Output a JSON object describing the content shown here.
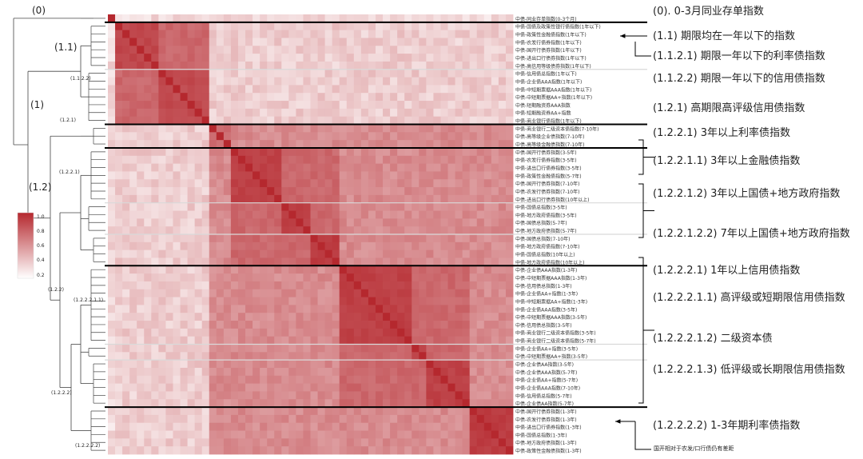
{
  "chart_data": {
    "type": "heatmap",
    "description_free": true,
    "colorbar": {
      "ticks": [
        "1.0",
        "0.8",
        "0.6",
        "0.4",
        "0.2"
      ],
      "min": 0.2,
      "max": 1.0
    },
    "colors": {
      "high": "#b5282e",
      "low": "#ffffff",
      "divider": "#000000",
      "subdivider": "#d9d9d9"
    },
    "tree_labels": {
      "root": "(0)",
      "n1": "(1)",
      "n11": "(1.1)",
      "n1122": "(1.1.2.2)",
      "n121": "(1.2.1)",
      "n12": "(1.2)",
      "n1221": "(1.2.2.1)",
      "n122": "(1.2.2)",
      "n12221": "(1.2.2.2.1.1)",
      "n1222": "(1.2.2.2)",
      "n12222": "(1.2.2.2.2)"
    },
    "annotations": [
      "(0). 0-3月同业存单指数",
      "(1.1) 期限均在一年以下的指数",
      "(1.1.2.1) 期限一年以下的利率债指数",
      "(1.1.2.2) 期限一年以下的信用债指数",
      "(1.2.1) 高期限高评级信用债指数",
      "(1.2.2.1) 3年以上利率债指数",
      "(1.2.2.1.1) 3年以上金融债指数",
      "(1.2.2.1.2) 3年以上国债+地方政府指数",
      "(1.2.2.1.2.2) 7年以上国债+地方政府指数",
      "(1.2.2.2.1) 1年以上信用债指数",
      "(1.2.2.2.1.1) 高评级或短期限信用债指数",
      "(1.2.2.2.1.2) 二级资本债",
      "(1.2.2.2.1.3) 低评级或长期限信用债指数",
      "(1.2.2.2.2) 1-3年期利率债指数"
    ],
    "footnote": "国开相对于农发/口行债仍有差距",
    "row_labels": [
      "中债-同业存单指数(0-3个月)",
      "中债-国债及政策性银行债指数(1年以下)",
      "中债-政策性金融债指数(1年以下)",
      "中债-农发行债券指数(1年以下)",
      "中债-国开行债券指数(1年以下)",
      "中债-进出口行债券指数(1年以下)",
      "中债-高信用等级债券指数(1年以下)",
      "中债-信用债总指数(1年以下)",
      "中债-企业债AAA指数(1年以下)",
      "中债-中短期票据AAA指数(1年以下)",
      "中债-中短期票据AA+指数(1年以下)",
      "中债-短期融资券AAA指数",
      "中债-短期融资券AA+指数",
      "中债-商业银行债指数(1年以下)",
      "中债-商业银行二级资本债指数(7-10年)",
      "中债-高等级企业债指数(7-10年)",
      "中债-高等级金融债指数(7-10年)",
      "中债-国开行债券指数(3-5年)",
      "中债-农发行债券指数(3-5年)",
      "中债-进出口行债券指数(3-5年)",
      "中债-政策性金融债指数(5-7年)",
      "中债-国开行债券指数(7-10年)",
      "中债-农发行债券指数(7-10年)",
      "中债-进出口行债券指数(10年以上)",
      "中债-国债总指数(3-5年)",
      "中债-地方政府债指数(3-5年)",
      "中债-国债总指数(5-7年)",
      "中债-地方政府债指数(5-7年)",
      "中债-国债总指数(7-10年)",
      "中债-地方政府债指数(7-10年)",
      "中债-国债总指数(10年以上)",
      "中债-地方政府债指数(10年以上)",
      "中债-企业债AAA指数(1-3年)",
      "中债-中短期票据AAA指数(1-3年)",
      "中债-信用债总指数(1-3年)",
      "中债-企业债AA+指数(1-3年)",
      "中债-中短期票据AA+指数(1-3年)",
      "中债-企业债AAA指数(3-5年)",
      "中债-中短期票据AAA指数(3-5年)",
      "中债-信用债总指数(3-5年)",
      "中债-商业银行二级资本债指数(3-5年)",
      "中债-商业银行二级资本债指数(5-7年)",
      "中债-企业债AA+指数(3-5年)",
      "中债-中短期票据AA+指数(3-5年)",
      "中债-企业债AA指数(3-5年)",
      "中债-企业债AAA指数(5-7年)",
      "中债-企业债AA+指数(5-7年)",
      "中债-企业债AAA指数(7-10年)",
      "中债-信用债总指数(5-7年)",
      "中债-企业债AA指数(5-7年)",
      "中债-国开行债券指数(1-3年)",
      "中债-农发行债券指数(1-3年)",
      "中债-进出口行债券指数(1-3年)",
      "中债-国债总指数(1-3年)",
      "中债-地方政府债指数(1-3年)",
      "中债-政策性金融债指数(1-3年)"
    ],
    "groups": [
      {
        "name": "(0)",
        "size": 1,
        "base": 0.78
      },
      {
        "name": "(1.1.2.1)",
        "size": 6,
        "base": 0.88
      },
      {
        "name": "(1.1.2.2)",
        "size": 7,
        "base": 0.86
      },
      {
        "name": "(1.2.1)",
        "size": 3,
        "base": 0.72
      },
      {
        "name": "(1.2.2.1.1)",
        "size": 7,
        "base": 0.9
      },
      {
        "name": "(1.2.2.1.2)",
        "size": 4,
        "base": 0.9
      },
      {
        "name": "(1.2.2.1.2.2)",
        "size": 4,
        "base": 0.92
      },
      {
        "name": "(1.2.2.2.1.1)",
        "size": 10,
        "base": 0.9
      },
      {
        "name": "(1.2.2.2.1.2)",
        "size": 2,
        "base": 0.9
      },
      {
        "name": "(1.2.2.2.1.3)",
        "size": 6,
        "base": 0.9
      },
      {
        "name": "(1.2.2.2.2)",
        "size": 6,
        "base": 0.92
      }
    ],
    "superclusters": [
      {
        "name": "(0)",
        "start": 0,
        "end": 0
      },
      {
        "name": "(1.1)",
        "start": 1,
        "end": 2
      },
      {
        "name": "(1.2.1)",
        "start": 3,
        "end": 3
      },
      {
        "name": "(1.2.2.1)",
        "start": 4,
        "end": 6
      },
      {
        "name": "(1.2.2.2.1)",
        "start": 7,
        "end": 9
      },
      {
        "name": "(1.2.2.2.2)",
        "start": 10,
        "end": 10
      }
    ]
  }
}
